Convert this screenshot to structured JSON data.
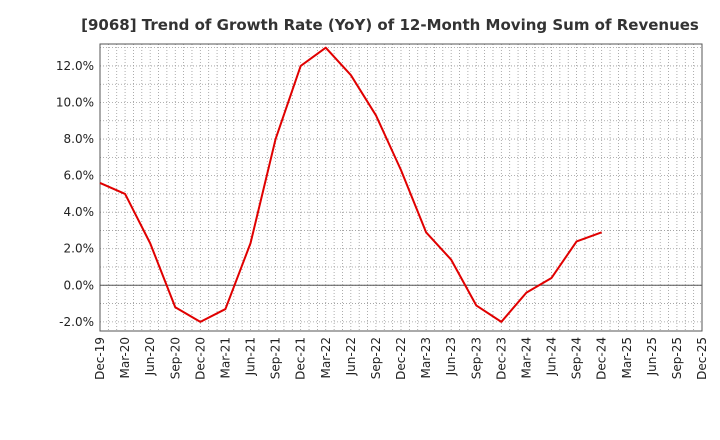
{
  "chart_data": {
    "type": "line",
    "title": "[9068]  Trend of Growth Rate (YoY) of 12-Month Moving Sum of Revenues",
    "xlabel": "",
    "ylabel": "",
    "x": [
      "Dec-19",
      "Mar-20",
      "Jun-20",
      "Sep-20",
      "Dec-20",
      "Mar-21",
      "Jun-21",
      "Sep-21",
      "Dec-21",
      "Mar-22",
      "Jun-22",
      "Sep-22",
      "Dec-22",
      "Mar-23",
      "Jun-23",
      "Sep-23",
      "Dec-23",
      "Mar-24",
      "Jun-24",
      "Sep-24",
      "Dec-24",
      "Mar-25"
    ],
    "x_tick_labels": [
      "Dec-19",
      "Mar-20",
      "Jun-20",
      "Sep-20",
      "Dec-20",
      "Mar-21",
      "Jun-21",
      "Sep-21",
      "Dec-21",
      "Mar-22",
      "Jun-22",
      "Sep-22",
      "Dec-22",
      "Mar-23",
      "Jun-23",
      "Sep-23",
      "Dec-23",
      "Mar-24",
      "Jun-24",
      "Sep-24",
      "Dec-24",
      "Mar-25",
      "Jun-25",
      "Sep-25",
      "Dec-25"
    ],
    "y_tick_labels": [
      "-2.0%",
      "0.0%",
      "2.0%",
      "4.0%",
      "6.0%",
      "8.0%",
      "10.0%",
      "12.0%"
    ],
    "y_ticks": [
      -2,
      0,
      2,
      4,
      6,
      8,
      10,
      12
    ],
    "ylim": [
      -2.5,
      13.2
    ],
    "series": [
      {
        "values": [
          5.6,
          5.0,
          2.3,
          -1.2,
          -2.0,
          -1.3,
          2.3,
          8.0,
          12.0,
          13.0,
          11.5,
          9.3,
          6.3,
          2.9,
          1.4,
          -1.1,
          -2.0,
          -0.4,
          0.4,
          2.4,
          2.9,
          null
        ],
        "color": "#e00000"
      }
    ],
    "grid": true,
    "legend": "none"
  }
}
